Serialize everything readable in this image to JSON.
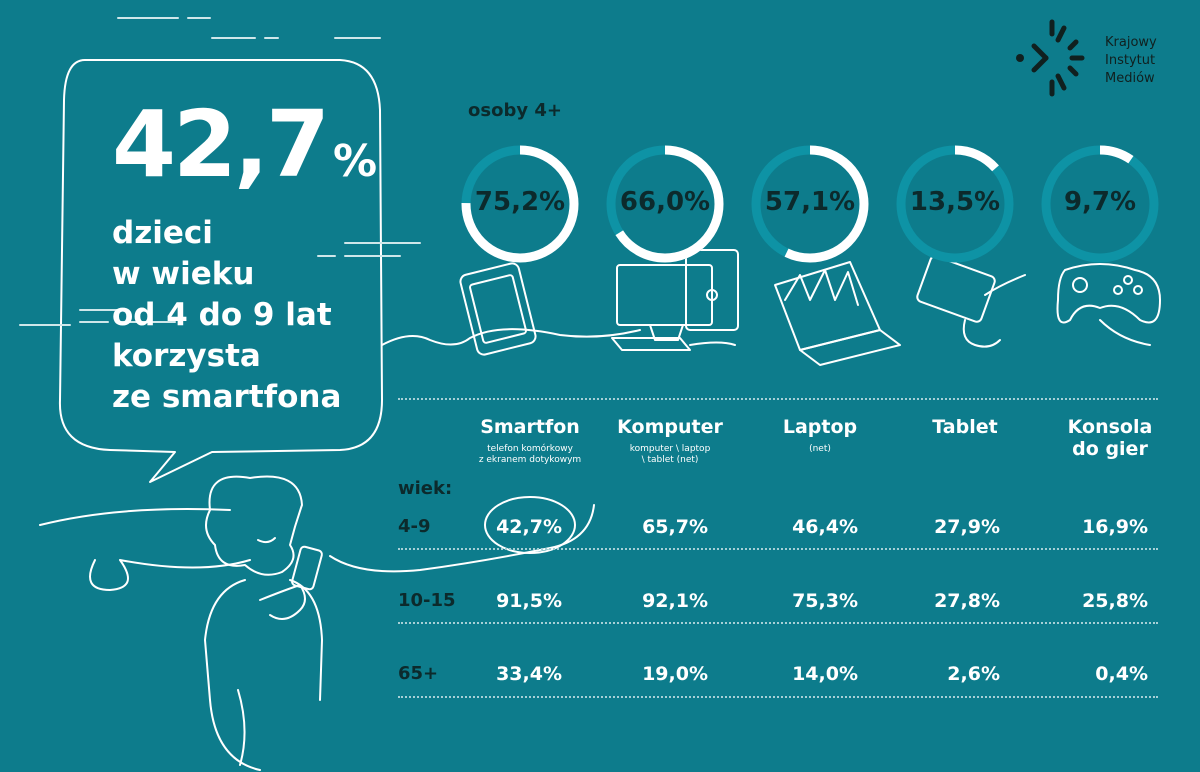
{
  "logo": {
    "lines": [
      "Krajowy",
      "Instytut",
      "Mediów"
    ]
  },
  "headline": {
    "big_number": "42,7",
    "big_unit": "%",
    "lines": [
      "dzieci",
      "w wieku",
      "od 4 do 9 lat",
      "korzysta",
      "ze smartfona"
    ]
  },
  "colors": {
    "background": "#0d7c8c",
    "ring_track": "#0e93a5",
    "ring_fill": "#ffffff",
    "dark_text": "#0c2a2c"
  },
  "chart_data": [
    {
      "type": "pie",
      "title": "osoby 4+",
      "categories": [
        "Smartfon",
        "Komputer",
        "Laptop",
        "Tablet",
        "Konsola do gier"
      ],
      "values": [
        75.2,
        66.0,
        57.1,
        13.5,
        9.7
      ],
      "value_labels": [
        "75,2%",
        "66,0%",
        "57,1%",
        "13,5%",
        "9,7%"
      ],
      "icons": [
        "smartphone-icon",
        "desktop-computer-icon",
        "laptop-icon",
        "tablet-icon",
        "gamepad-icon"
      ]
    },
    {
      "type": "table",
      "row_header_label": "wiek:",
      "columns": [
        {
          "name": "Smartfon",
          "note": [
            "telefon komórkowy",
            "z ekranem dotykowym"
          ]
        },
        {
          "name": "Komputer",
          "note": [
            "komputer \\ laptop",
            "\\ tablet (net)"
          ]
        },
        {
          "name": "Laptop",
          "note": [
            "(net)"
          ]
        },
        {
          "name": "Tablet",
          "note": []
        },
        {
          "name": "Konsola do gier",
          "name_lines": [
            "Konsola",
            "do gier"
          ],
          "note": []
        }
      ],
      "rows": [
        {
          "label": "4-9",
          "values": [
            42.7,
            65.7,
            46.4,
            27.9,
            16.9
          ],
          "labels": [
            "42,7%",
            "65,7%",
            "46,4%",
            "27,9%",
            "16,9%"
          ],
          "highlighted": 0
        },
        {
          "label": "10-15",
          "values": [
            91.5,
            92.1,
            75.3,
            27.8,
            25.8
          ],
          "labels": [
            "91,5%",
            "92,1%",
            "75,3%",
            "27,8%",
            "25,8%"
          ]
        },
        {
          "label": "65+",
          "values": [
            33.4,
            19.0,
            14.0,
            2.6,
            0.4
          ],
          "labels": [
            "33,4%",
            "19,0%",
            "14,0%",
            "2,6%",
            "0,4%"
          ]
        }
      ]
    }
  ]
}
